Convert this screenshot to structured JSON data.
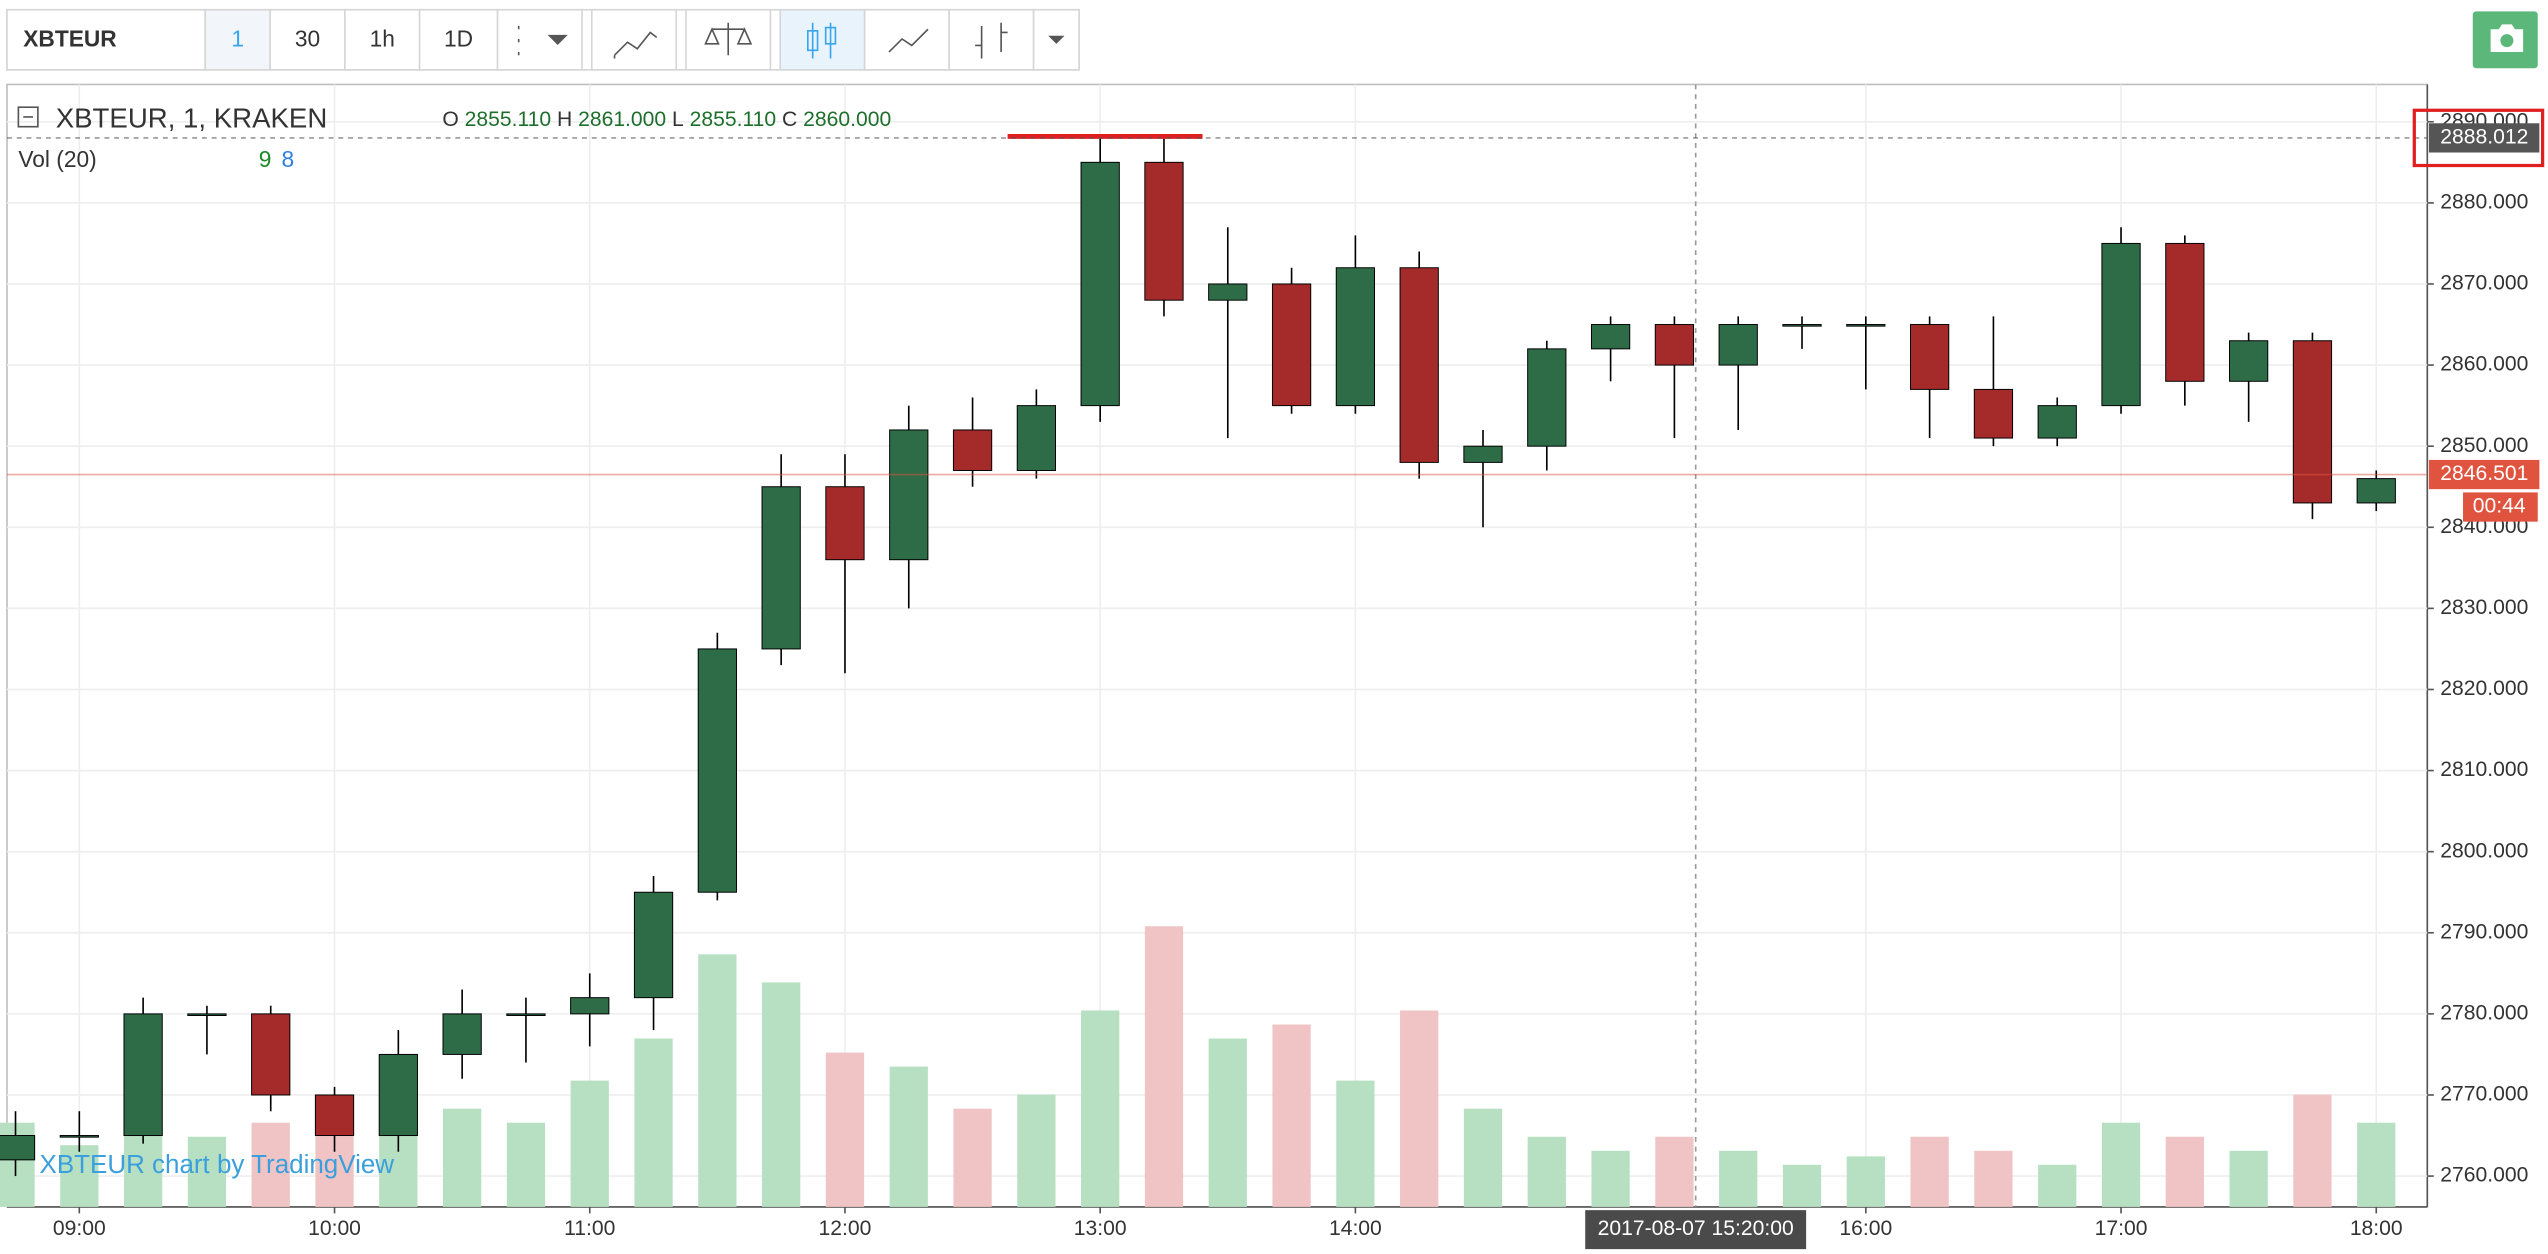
{
  "toolbar": {
    "symbol": "XBTEUR",
    "intervals": [
      "1",
      "30",
      "1h",
      "1D"
    ]
  },
  "legend": {
    "title": "XBTEUR, 1, KRAKEN",
    "ohlc": [
      "O",
      "2855.110",
      "H",
      "2861.000",
      "L",
      "2855.110",
      "C",
      "2860.000"
    ],
    "volume": "Vol (20)",
    "volume_values": [
      "9",
      "8"
    ]
  },
  "watermark": "XBTEUR chart by TradingView",
  "crosshair_time": "2017-08-07 15:20:00",
  "chart_data": {
    "type": "candlestick",
    "xlim": [
      523,
      1092
    ],
    "xticks": [
      {
        "value": 540,
        "label": "09:00"
      },
      {
        "value": 600,
        "label": "10:00"
      },
      {
        "value": 660,
        "label": "11:00"
      },
      {
        "value": 720,
        "label": "12:00"
      },
      {
        "value": 780,
        "label": "13:00"
      },
      {
        "value": 840,
        "label": "14:00"
      },
      {
        "value": 960,
        "label": "16:00"
      },
      {
        "value": 1020,
        "label": "17:00"
      },
      {
        "value": 1080,
        "label": "18:00"
      }
    ],
    "ylim": [
      2756.2,
      2894.6
    ],
    "yticks": [
      {
        "value": 2760,
        "label": "2760.000"
      },
      {
        "value": 2770,
        "label": "2770.000"
      },
      {
        "value": 2780,
        "label": "2780.000"
      },
      {
        "value": 2790,
        "label": "2790.000"
      },
      {
        "value": 2800,
        "label": "2800.000"
      },
      {
        "value": 2810,
        "label": "2810.000"
      },
      {
        "value": 2820,
        "label": "2820.000"
      },
      {
        "value": 2830,
        "label": "2830.000"
      },
      {
        "value": 2840,
        "label": "2840.000"
      },
      {
        "value": 2850,
        "label": "2850.000"
      },
      {
        "value": 2860,
        "label": "2860.000"
      },
      {
        "value": 2870,
        "label": "2870.000"
      },
      {
        "value": 2880,
        "label": "2880.000"
      },
      {
        "value": 2890,
        "label": "2890.000"
      }
    ],
    "y2lim": [
      0,
      400
    ],
    "grid": true,
    "up_color": "#2e6b47",
    "down_color": "#a52a2a",
    "volume_up_color": "#b7e0c3",
    "volume_down_color": "#f0c4c4",
    "price_lines": [
      {
        "value": 2888.012,
        "label": "2888.012",
        "color": "#555555"
      },
      {
        "value": 2846.501,
        "label": "2846.501",
        "color": "#e0533f",
        "countdown": "00:44"
      }
    ],
    "crosshair_x": 920,
    "candles": [
      {
        "time": 525,
        "o": 2762,
        "h": 2768,
        "l": 2760,
        "c": 2765,
        "v": 30
      },
      {
        "time": 540,
        "o": 2765,
        "h": 2768,
        "l": 2763,
        "c": 2765,
        "v": 22
      },
      {
        "time": 555,
        "o": 2765,
        "h": 2782,
        "l": 2764,
        "c": 2780,
        "v": 35
      },
      {
        "time": 570,
        "o": 2780,
        "h": 2781,
        "l": 2775,
        "c": 2780,
        "v": 25
      },
      {
        "time": 585,
        "o": 2780,
        "h": 2781,
        "l": 2768,
        "c": 2770,
        "v": 30
      },
      {
        "time": 600,
        "o": 2770,
        "h": 2771,
        "l": 2763,
        "c": 2765,
        "v": 28
      },
      {
        "time": 615,
        "o": 2765,
        "h": 2778,
        "l": 2763,
        "c": 2775,
        "v": 40
      },
      {
        "time": 630,
        "o": 2775,
        "h": 2783,
        "l": 2772,
        "c": 2780,
        "v": 35
      },
      {
        "time": 645,
        "o": 2780,
        "h": 2782,
        "l": 2774,
        "c": 2780,
        "v": 30
      },
      {
        "time": 660,
        "o": 2780,
        "h": 2785,
        "l": 2776,
        "c": 2782,
        "v": 45
      },
      {
        "time": 675,
        "o": 2782,
        "h": 2797,
        "l": 2778,
        "c": 2795,
        "v": 60
      },
      {
        "time": 690,
        "o": 2795,
        "h": 2827,
        "l": 2794,
        "c": 2825,
        "v": 90
      },
      {
        "time": 705,
        "o": 2825,
        "h": 2849,
        "l": 2823,
        "c": 2845,
        "v": 80
      },
      {
        "time": 720,
        "o": 2845,
        "h": 2849,
        "l": 2822,
        "c": 2836,
        "v": 55
      },
      {
        "time": 735,
        "o": 2836,
        "h": 2855,
        "l": 2830,
        "c": 2852,
        "v": 50
      },
      {
        "time": 750,
        "o": 2852,
        "h": 2856,
        "l": 2845,
        "c": 2847,
        "v": 35
      },
      {
        "time": 765,
        "o": 2847,
        "h": 2857,
        "l": 2846,
        "c": 2855,
        "v": 40
      },
      {
        "time": 780,
        "o": 2855,
        "h": 2888,
        "l": 2853,
        "c": 2885,
        "v": 70
      },
      {
        "time": 795,
        "o": 2885,
        "h": 2888,
        "l": 2866,
        "c": 2868,
        "v": 100
      },
      {
        "time": 810,
        "o": 2868,
        "h": 2877,
        "l": 2851,
        "c": 2870,
        "v": 60
      },
      {
        "time": 825,
        "o": 2870,
        "h": 2872,
        "l": 2854,
        "c": 2855,
        "v": 65
      },
      {
        "time": 840,
        "o": 2855,
        "h": 2876,
        "l": 2854,
        "c": 2872,
        "v": 45
      },
      {
        "time": 855,
        "o": 2872,
        "h": 2874,
        "l": 2846,
        "c": 2848,
        "v": 70
      },
      {
        "time": 870,
        "o": 2848,
        "h": 2852,
        "l": 2840,
        "c": 2850,
        "v": 35
      },
      {
        "time": 885,
        "o": 2850,
        "h": 2863,
        "l": 2847,
        "c": 2862,
        "v": 25
      },
      {
        "time": 900,
        "o": 2862,
        "h": 2866,
        "l": 2858,
        "c": 2865,
        "v": 20
      },
      {
        "time": 915,
        "o": 2865,
        "h": 2866,
        "l": 2851,
        "c": 2860,
        "v": 25
      },
      {
        "time": 930,
        "o": 2860,
        "h": 2866,
        "l": 2852,
        "c": 2865,
        "v": 20
      },
      {
        "time": 945,
        "o": 2865,
        "h": 2866,
        "l": 2862,
        "c": 2865,
        "v": 15
      },
      {
        "time": 960,
        "o": 2865,
        "h": 2866,
        "l": 2857,
        "c": 2865,
        "v": 18
      },
      {
        "time": 975,
        "o": 2865,
        "h": 2866,
        "l": 2851,
        "c": 2857,
        "v": 25
      },
      {
        "time": 990,
        "o": 2857,
        "h": 2866,
        "l": 2850,
        "c": 2851,
        "v": 20
      },
      {
        "time": 1005,
        "o": 2851,
        "h": 2856,
        "l": 2850,
        "c": 2855,
        "v": 15
      },
      {
        "time": 1020,
        "o": 2855,
        "h": 2877,
        "l": 2854,
        "c": 2875,
        "v": 30
      },
      {
        "time": 1035,
        "o": 2875,
        "h": 2876,
        "l": 2855,
        "c": 2858,
        "v": 25
      },
      {
        "time": 1050,
        "o": 2858,
        "h": 2864,
        "l": 2853,
        "c": 2863,
        "v": 20
      },
      {
        "time": 1065,
        "o": 2863,
        "h": 2864,
        "l": 2841,
        "c": 2843,
        "v": 40
      },
      {
        "time": 1080,
        "o": 2843,
        "h": 2847,
        "l": 2842,
        "c": 2846,
        "v": 30
      }
    ]
  }
}
